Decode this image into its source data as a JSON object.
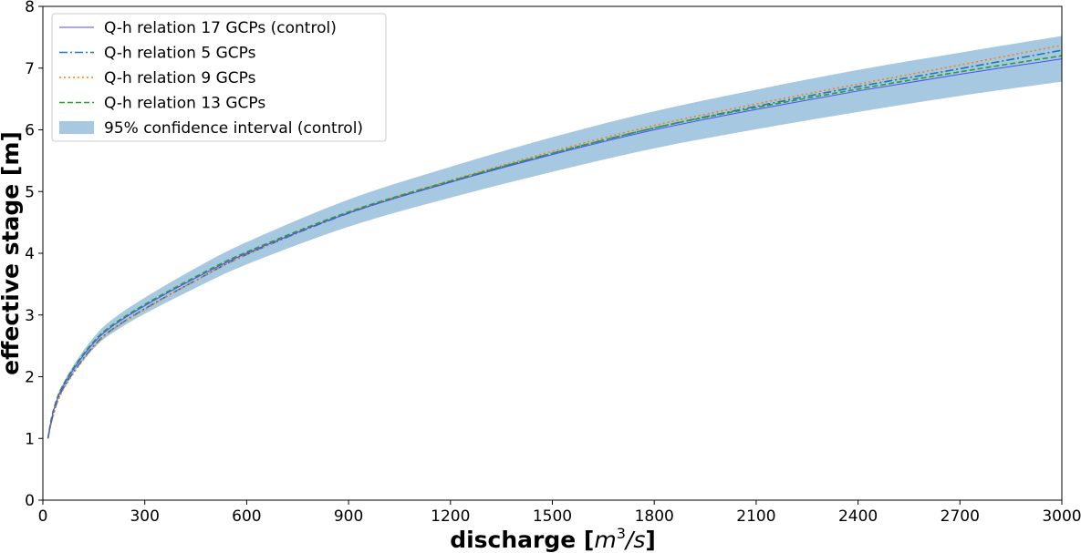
{
  "chart_data": {
    "type": "line",
    "title": "",
    "xlabel": {
      "text": "discharge [",
      "unit_base": "m",
      "unit_exp": "3",
      "unit_rest": "/s",
      "close": "]"
    },
    "ylabel": "effective stage [m]",
    "xlim": [
      0,
      3000
    ],
    "ylim": [
      0,
      8
    ],
    "xticks": [
      0,
      300,
      600,
      900,
      1200,
      1500,
      1800,
      2100,
      2400,
      2700,
      3000
    ],
    "yticks": [
      0,
      1,
      2,
      3,
      4,
      5,
      6,
      7,
      8
    ],
    "grid": false,
    "legend_position": "top-left",
    "x": [
      15,
      25,
      40,
      60,
      100,
      150,
      200,
      300,
      450,
      600,
      900,
      1200,
      1500,
      1800,
      2100,
      2400,
      2700,
      3000
    ],
    "series": [
      {
        "name": "Q-h relation 17 GCPs (control)",
        "color": "#4d4dff",
        "style": "solid",
        "values": [
          1.0,
          1.3,
          1.6,
          1.85,
          2.2,
          2.55,
          2.8,
          3.15,
          3.6,
          4.0,
          4.65,
          5.15,
          5.6,
          6.0,
          6.33,
          6.63,
          6.9,
          7.15
        ]
      },
      {
        "name": "Q-h relation 5 GCPs",
        "color": "#1f77b4",
        "style": "dashdot",
        "values": [
          1.0,
          1.27,
          1.56,
          1.81,
          2.15,
          2.5,
          2.75,
          3.1,
          3.56,
          3.98,
          4.65,
          5.16,
          5.62,
          6.03,
          6.38,
          6.7,
          6.99,
          7.29
        ]
      },
      {
        "name": "Q-h relation 9 GCPs",
        "color": "#ff7f0e",
        "style": "dotted",
        "values": [
          1.0,
          1.25,
          1.54,
          1.79,
          2.13,
          2.48,
          2.74,
          3.09,
          3.56,
          3.98,
          4.66,
          5.18,
          5.65,
          6.07,
          6.42,
          6.74,
          7.05,
          7.37
        ]
      },
      {
        "name": "Q-h relation 13 GCPs",
        "color": "#2ca02c",
        "style": "dashed",
        "values": [
          1.0,
          1.32,
          1.62,
          1.87,
          2.22,
          2.57,
          2.82,
          3.17,
          3.62,
          4.02,
          4.67,
          5.17,
          5.62,
          6.03,
          6.36,
          6.66,
          6.94,
          7.2
        ]
      }
    ],
    "band": {
      "name": "95% confidence interval (control)",
      "color": "#a6c8e0",
      "upper": [
        1.0,
        1.32,
        1.64,
        1.9,
        2.27,
        2.64,
        2.91,
        3.28,
        3.76,
        4.18,
        4.87,
        5.4,
        5.88,
        6.3,
        6.65,
        6.97,
        7.25,
        7.52
      ],
      "lower": [
        1.0,
        1.28,
        1.56,
        1.8,
        2.13,
        2.46,
        2.69,
        3.02,
        3.44,
        3.82,
        4.43,
        4.9,
        5.32,
        5.7,
        6.01,
        6.29,
        6.55,
        6.78
      ]
    }
  }
}
